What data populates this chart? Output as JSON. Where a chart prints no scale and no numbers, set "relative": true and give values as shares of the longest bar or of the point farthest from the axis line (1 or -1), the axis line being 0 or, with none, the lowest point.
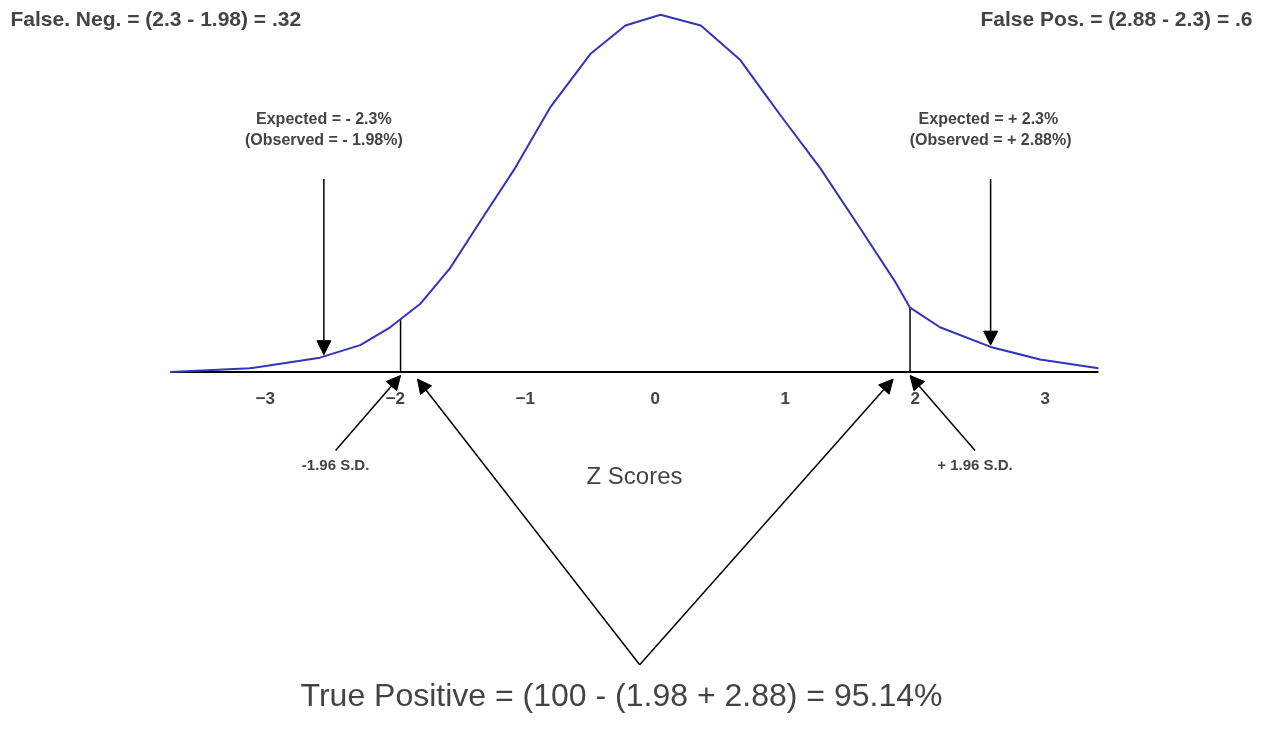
{
  "chart_data": {
    "type": "line",
    "relative": true,
    "xlabel": "Z Scores",
    "x": [
      -3.73,
      -3.12,
      -2.58,
      -2.27,
      -2.04,
      -1.81,
      -1.58,
      -1.35,
      -1.08,
      -0.81,
      -0.5,
      -0.23,
      0.04,
      0.35,
      0.65,
      0.96,
      1.27,
      1.58,
      1.85,
      1.96,
      2.19,
      2.58,
      2.96,
      3.41
    ],
    "series": [
      {
        "color": "#3333bb",
        "values": [
          0.0,
          0.01,
          0.04,
          0.075,
          0.125,
          0.19,
          0.29,
          0.42,
          0.57,
          0.74,
          0.89,
          0.97,
          1.0,
          0.97,
          0.875,
          0.72,
          0.57,
          0.4,
          0.25,
          0.18,
          0.125,
          0.07,
          0.035,
          0.01
        ]
      }
    ],
    "xlim": [
      -3.73,
      3.41
    ],
    "xticks": [
      -3,
      -2,
      -1,
      0,
      1,
      2,
      3
    ],
    "tick_labels": "x",
    "grid": false,
    "ref_lines": [
      {
        "axis": "x",
        "value": -1.96,
        "label": "-1.96 S.D.",
        "color": "#000000"
      },
      {
        "axis": "x",
        "value": 1.96,
        "label": "+ 1.96 S.D.",
        "color": "#000000"
      }
    ],
    "annotations": [
      "False. Neg. = (2.3 - 1.98) = .32",
      "False Pos. = (2.88 - 2.3) = .6",
      "Expected = - 2.3%\n(Observed = - 1.98%)",
      "Expected =  + 2.3%\n(Observed = + 2.88%)",
      "True Positive = (100 - (1.98 + 2.88) = 95.14%"
    ]
  }
}
